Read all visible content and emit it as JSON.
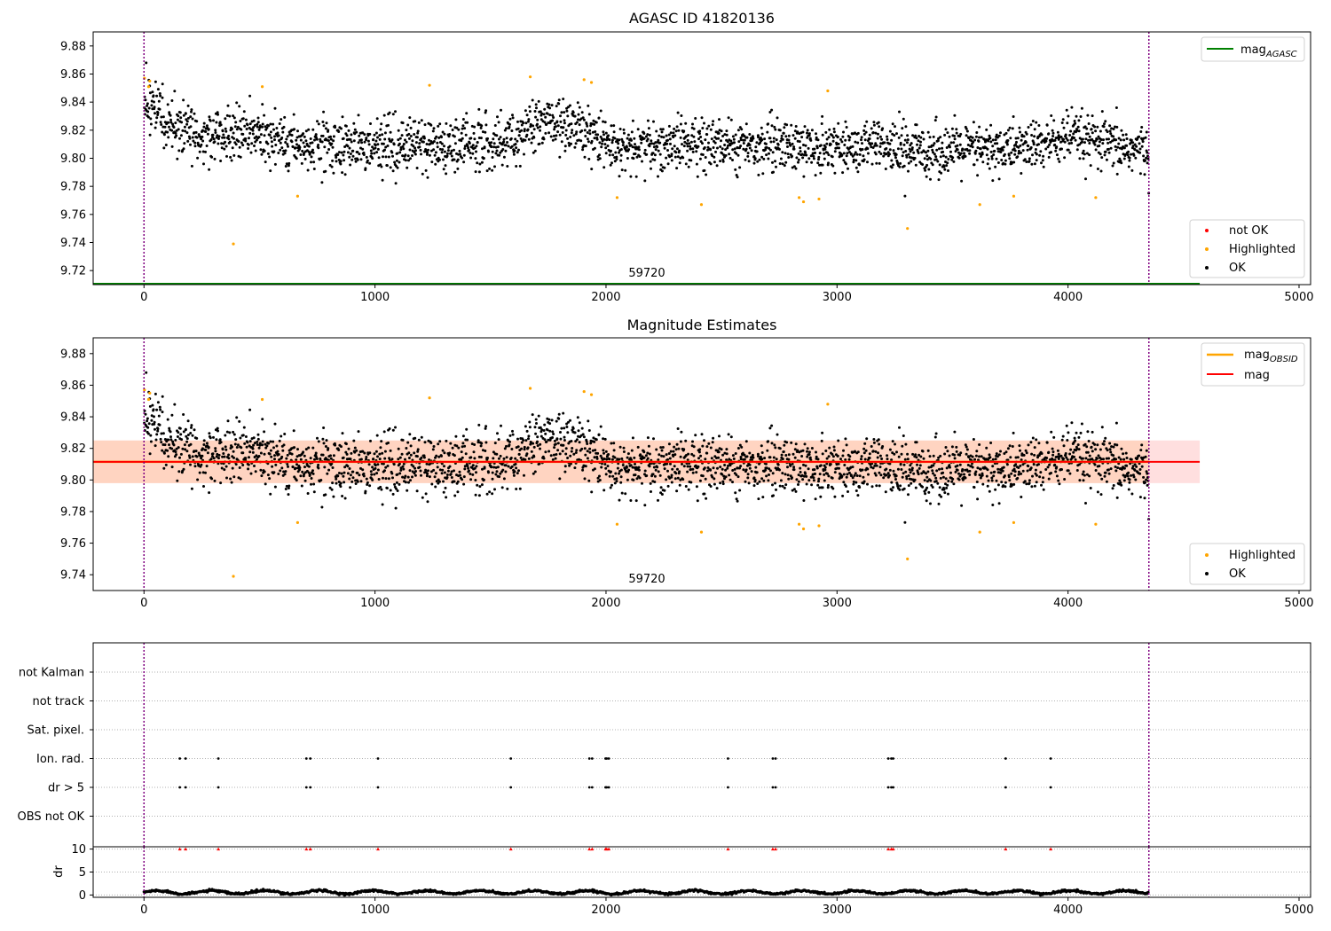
{
  "chart_data": [
    {
      "type": "scatter",
      "title": "AGASC ID 41820136",
      "xlim": [
        -220,
        5050
      ],
      "ylim": [
        9.71,
        9.89
      ],
      "xticks": [
        0,
        1000,
        2000,
        3000,
        4000,
        5000
      ],
      "yticks": [
        9.72,
        9.74,
        9.76,
        9.78,
        9.8,
        9.82,
        9.84,
        9.86,
        9.88
      ],
      "grid": false,
      "vlines": [
        0,
        4350
      ],
      "annotation": {
        "text": "59720",
        "x": 2180,
        "y": 9.7165
      },
      "hlines": [
        {
          "name": "mag_AGASC",
          "label_main": "mag",
          "label_sub": "AGASC",
          "y": 9.71,
          "x_range": [
            -220,
            4570
          ],
          "color": "#008000"
        }
      ],
      "legend_top": {
        "placement": "top-right",
        "entries": [
          {
            "label": "mag",
            "sub": "AGASC",
            "color": "#008000",
            "kind": "line"
          }
        ]
      },
      "legend_bottom": {
        "placement": "lower-right",
        "entries": [
          {
            "label": "not OK",
            "color": "#ff0000",
            "kind": "point"
          },
          {
            "label": "Highlighted",
            "color": "#ffa500",
            "kind": "point"
          },
          {
            "label": "OK",
            "color": "#000000",
            "kind": "point"
          }
        ]
      },
      "series": [
        {
          "name": "Highlighted",
          "color": "#ffa500",
          "points": [
            [
              2,
              9.857
            ],
            [
              20,
              9.851
            ],
            [
              25,
              9.855
            ],
            [
              387,
              9.739
            ],
            [
              512,
              9.851
            ],
            [
              665,
              9.773
            ],
            [
              1236,
              9.852
            ],
            [
              1672,
              9.858
            ],
            [
              1905,
              9.856
            ],
            [
              1937,
              9.854
            ],
            [
              2048,
              9.772
            ],
            [
              2413,
              9.767
            ],
            [
              2836,
              9.772
            ],
            [
              2855,
              9.769
            ],
            [
              2922,
              9.771
            ],
            [
              2960,
              9.848
            ],
            [
              3305,
              9.75
            ],
            [
              3618,
              9.767
            ],
            [
              3765,
              9.773
            ],
            [
              4120,
              9.772
            ]
          ]
        },
        {
          "name": "OK",
          "color": "#000000",
          "mean_points": [
            [
              0,
              9.836
            ],
            [
              40,
              9.838
            ],
            [
              100,
              9.822
            ],
            [
              300,
              9.816
            ],
            [
              500,
              9.818
            ],
            [
              600,
              9.812
            ],
            [
              800,
              9.809
            ],
            [
              1000,
              9.808
            ],
            [
              1200,
              9.81
            ],
            [
              1400,
              9.81
            ],
            [
              1600,
              9.813
            ],
            [
              1750,
              9.826
            ],
            [
              1900,
              9.822
            ],
            [
              2000,
              9.812
            ],
            [
              2100,
              9.806
            ],
            [
              2300,
              9.81
            ],
            [
              2500,
              9.81
            ],
            [
              2700,
              9.81
            ],
            [
              2900,
              9.808
            ],
            [
              3100,
              9.808
            ],
            [
              3300,
              9.806
            ],
            [
              3500,
              9.806
            ],
            [
              3700,
              9.806
            ],
            [
              3900,
              9.81
            ],
            [
              4000,
              9.815
            ],
            [
              4200,
              9.808
            ],
            [
              4350,
              9.805
            ]
          ],
          "spread": 0.012
        }
      ]
    },
    {
      "type": "scatter",
      "title": "Magnitude Estimates",
      "xlim": [
        -220,
        5050
      ],
      "ylim": [
        9.73,
        9.89
      ],
      "xticks": [
        0,
        1000,
        2000,
        3000,
        4000,
        5000
      ],
      "yticks": [
        9.74,
        9.76,
        9.78,
        9.8,
        9.82,
        9.84,
        9.86,
        9.88
      ],
      "grid": false,
      "vlines": [
        0,
        4350
      ],
      "annotation": {
        "text": "59720",
        "x": 2180,
        "y": 9.737
      },
      "band": {
        "y_range": [
          9.798,
          9.825
        ],
        "x_range": [
          -220,
          4570
        ]
      },
      "hlines": [
        {
          "name": "mag_OBSID",
          "label_main": "mag",
          "label_sub": "OBSID",
          "y": 9.8115,
          "x_range": [
            -220,
            4350
          ],
          "color": "#ffa500"
        },
        {
          "name": "mag",
          "label_main": "mag",
          "label_sub": "",
          "y": 9.8115,
          "x_range": [
            -220,
            4570
          ],
          "color": "#ff0000"
        }
      ],
      "legend_top": {
        "placement": "top-right",
        "entries": [
          {
            "label": "mag",
            "sub": "OBSID",
            "color": "#ffa500",
            "kind": "line"
          },
          {
            "label": "mag",
            "sub": "",
            "color": "#ff0000",
            "kind": "line"
          }
        ]
      },
      "legend_bottom": {
        "placement": "lower-right",
        "entries": [
          {
            "label": "Highlighted",
            "color": "#ffa500",
            "kind": "point"
          },
          {
            "label": "OK",
            "color": "#000000",
            "kind": "point"
          }
        ]
      },
      "series": [
        {
          "name": "Highlighted",
          "color": "#ffa500",
          "points": [
            [
              2,
              9.857
            ],
            [
              20,
              9.851
            ],
            [
              25,
              9.855
            ],
            [
              387,
              9.739
            ],
            [
              512,
              9.851
            ],
            [
              665,
              9.773
            ],
            [
              1236,
              9.852
            ],
            [
              1672,
              9.858
            ],
            [
              1905,
              9.856
            ],
            [
              1937,
              9.854
            ],
            [
              2048,
              9.772
            ],
            [
              2413,
              9.767
            ],
            [
              2836,
              9.772
            ],
            [
              2855,
              9.769
            ],
            [
              2922,
              9.771
            ],
            [
              2960,
              9.848
            ],
            [
              3305,
              9.75
            ],
            [
              3618,
              9.767
            ],
            [
              3765,
              9.773
            ],
            [
              4120,
              9.772
            ]
          ]
        },
        {
          "name": "OK",
          "color": "#000000",
          "mean_points": [
            [
              0,
              9.836
            ],
            [
              40,
              9.838
            ],
            [
              100,
              9.822
            ],
            [
              300,
              9.816
            ],
            [
              500,
              9.818
            ],
            [
              600,
              9.812
            ],
            [
              800,
              9.809
            ],
            [
              1000,
              9.808
            ],
            [
              1200,
              9.81
            ],
            [
              1400,
              9.81
            ],
            [
              1600,
              9.813
            ],
            [
              1750,
              9.826
            ],
            [
              1900,
              9.822
            ],
            [
              2000,
              9.812
            ],
            [
              2100,
              9.806
            ],
            [
              2300,
              9.81
            ],
            [
              2500,
              9.81
            ],
            [
              2700,
              9.81
            ],
            [
              2900,
              9.808
            ],
            [
              3100,
              9.808
            ],
            [
              3300,
              9.806
            ],
            [
              3500,
              9.806
            ],
            [
              3700,
              9.806
            ],
            [
              3900,
              9.81
            ],
            [
              4000,
              9.815
            ],
            [
              4200,
              9.808
            ],
            [
              4350,
              9.805
            ]
          ],
          "spread": 0.012
        }
      ]
    },
    {
      "type": "scatter",
      "title": "",
      "xlim": [
        -220,
        5050
      ],
      "categories": [
        "not Kalman",
        "not track",
        "Sat. pixel.",
        "Ion. rad.",
        "dr > 5",
        "OBS not OK"
      ],
      "vlines": [
        0,
        4350
      ],
      "flag_events_x": [
        155,
        180,
        322,
        703,
        720,
        1013,
        1588,
        1928,
        1940,
        1998,
        2003,
        2012,
        2528,
        2722,
        2734,
        3222,
        3235,
        3243,
        3730,
        3925
      ],
      "flagged_categories": [
        "Ion. rad.",
        "dr > 5"
      ],
      "grid": true
    },
    {
      "type": "line",
      "title": "",
      "ylabel": "dr",
      "xlim": [
        -220,
        5050
      ],
      "ylim": [
        -0.5,
        10.5
      ],
      "xticks": [
        0,
        1000,
        2000,
        3000,
        4000,
        5000
      ],
      "yticks": [
        0,
        5,
        10
      ],
      "grid": true,
      "vlines": [
        0,
        4350
      ],
      "series": [
        {
          "name": "dr",
          "color": "#000000",
          "baseline": 0.6,
          "spread": 0.3,
          "x_range": [
            0,
            4350
          ]
        },
        {
          "name": "dr > 5",
          "color": "#ff0000",
          "y": 10,
          "x": [
            155,
            180,
            322,
            703,
            720,
            1013,
            1588,
            1928,
            1940,
            1998,
            2003,
            2012,
            2528,
            2722,
            2734,
            3222,
            3235,
            3243,
            3730,
            3925
          ]
        }
      ]
    }
  ]
}
